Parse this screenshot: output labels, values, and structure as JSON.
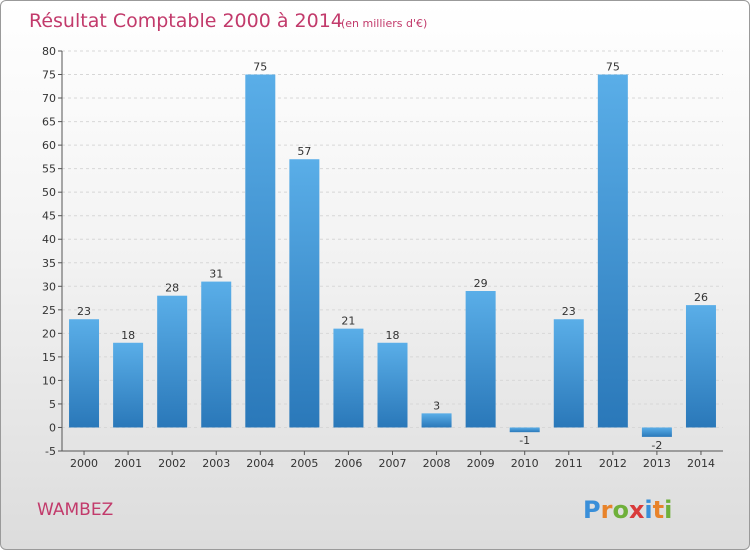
{
  "chart_data": {
    "type": "bar",
    "title": "Résultat Comptable 2000 à 2014",
    "subtitle": "(en milliers d'€)",
    "categories": [
      "2000",
      "2001",
      "2002",
      "2003",
      "2004",
      "2005",
      "2006",
      "2007",
      "2008",
      "2009",
      "2010",
      "2011",
      "2012",
      "2013",
      "2014"
    ],
    "values": [
      23,
      18,
      28,
      31,
      75,
      57,
      21,
      18,
      3,
      29,
      -1,
      23,
      75,
      -2,
      26
    ],
    "value_labels": [
      "23",
      "18",
      "28",
      "31",
      "75",
      "57",
      "21",
      "18",
      "3",
      "29",
      "-1",
      "23",
      "75",
      "-2",
      "26"
    ],
    "ylim": [
      -5,
      80
    ],
    "yticks": [
      "-5",
      "0",
      "5",
      "10",
      "15",
      "20",
      "25",
      "30",
      "35",
      "40",
      "45",
      "50",
      "55",
      "60",
      "65",
      "70",
      "75",
      "80"
    ],
    "xlabel": "",
    "ylabel": "",
    "grid": true,
    "bar_color_light": "#5aaee8",
    "bar_color_dark": "#2a78b9"
  },
  "place_name": "WAMBEZ",
  "logo": {
    "letters": [
      "P",
      "r",
      "o",
      "x",
      "i",
      "t",
      "i"
    ],
    "colors": [
      "#3a8fd9",
      "#e8832a",
      "#6fb03a",
      "#d93a3a",
      "#3a8fd9",
      "#e8832a",
      "#6fb03a"
    ]
  }
}
